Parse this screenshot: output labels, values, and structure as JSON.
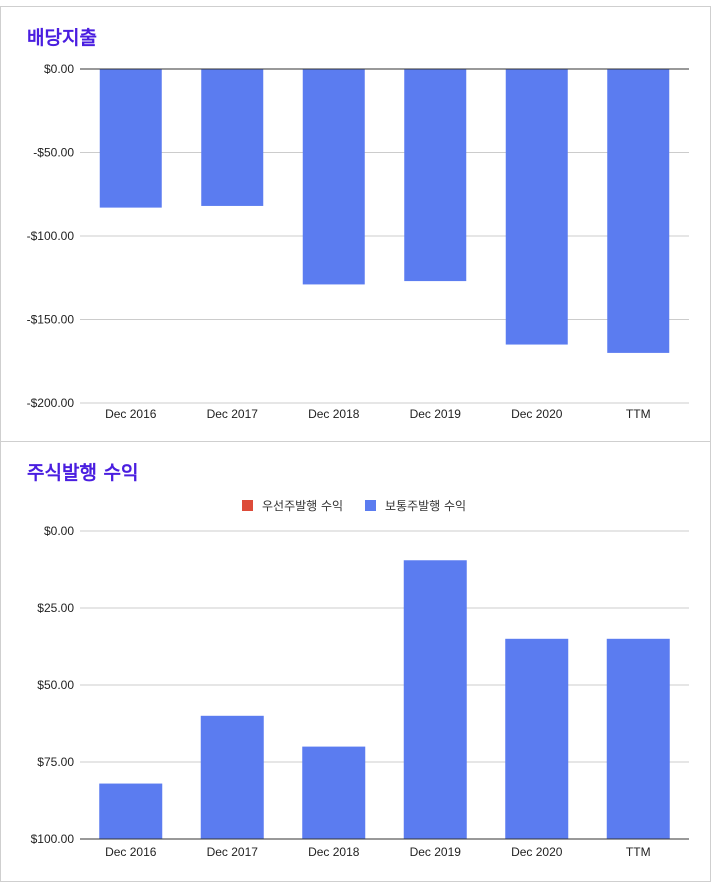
{
  "chart_data": [
    {
      "type": "bar",
      "title": "배당지출",
      "categories": [
        "Dec 2016",
        "Dec 2017",
        "Dec 2018",
        "Dec 2019",
        "Dec 2020",
        "TTM"
      ],
      "series": [
        {
          "values": [
            -83,
            -82,
            -129,
            -127,
            -165,
            -170
          ],
          "color": "#5b7cf0"
        }
      ],
      "y_ticks": [
        "$0.00",
        "-$50.00",
        "-$100.00",
        "-$150.00",
        "-$200.00"
      ],
      "ylim": [
        -200,
        0
      ],
      "grid": true,
      "legend": "none"
    },
    {
      "type": "bar",
      "title": "주식발행 수익",
      "categories": [
        "Dec 2016",
        "Dec 2017",
        "Dec 2018",
        "Dec 2019",
        "Dec 2020",
        "TTM"
      ],
      "series": [
        {
          "name": "우선주발행 수익",
          "values": [
            0,
            0,
            0,
            0,
            0,
            0
          ],
          "color": "#dd4b39"
        },
        {
          "name": "보통주발행 수익",
          "values": [
            18,
            40,
            30,
            90.5,
            65,
            65
          ],
          "color": "#5b7cf0"
        }
      ],
      "y_ticks": [
        "$0.00",
        "$25.00",
        "$50.00",
        "$75.00",
        "$100.00"
      ],
      "ylim": [
        0,
        100
      ],
      "grid": true,
      "legend": "top-center"
    }
  ]
}
